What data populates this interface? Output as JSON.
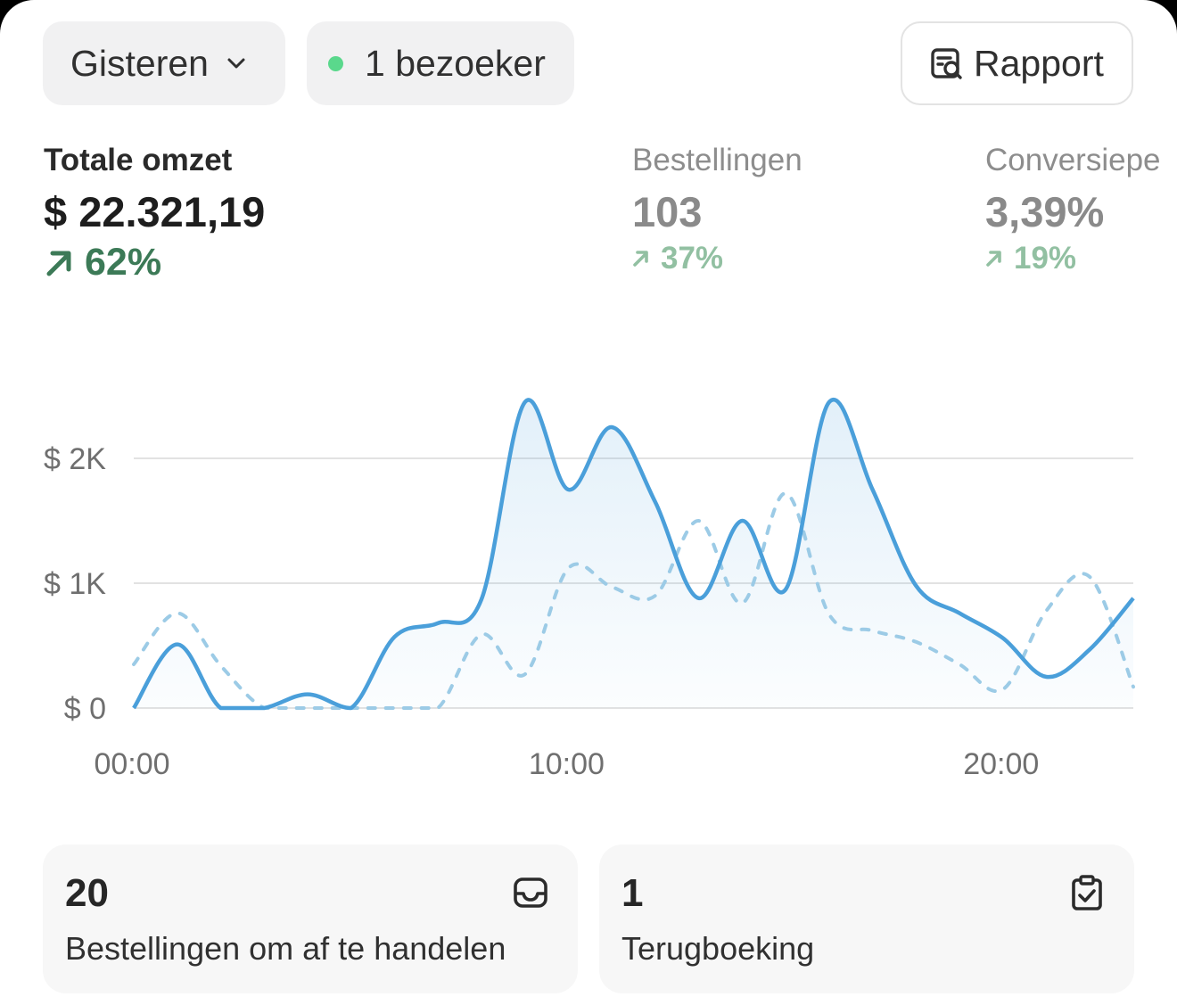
{
  "filters": {
    "date_label": "Gisteren",
    "visitors_label": "1 bezoeker",
    "report_label": "Rapport"
  },
  "metrics": [
    {
      "label": "Totale omzet",
      "value": "$ 22.321,19",
      "delta": "62%"
    },
    {
      "label": "Bestellingen",
      "value": "103",
      "delta": "37%"
    },
    {
      "label": "Conversiepe",
      "value": "3,39%",
      "delta": "19%"
    }
  ],
  "chart_data": {
    "type": "line",
    "y_ticks": [
      "$ 0",
      "$ 1K",
      "$ 2K"
    ],
    "x_ticks": [
      "00:00",
      "10:00",
      "20:00"
    ],
    "ylim": [
      0,
      2000
    ],
    "xlim": [
      0,
      23
    ],
    "grid": true,
    "series": [
      {
        "style": "solid",
        "x": [
          0,
          1,
          2,
          3,
          4,
          5,
          6,
          7,
          8,
          9,
          10,
          11,
          12,
          13,
          14,
          15,
          16,
          17,
          18,
          19,
          20,
          21,
          22,
          23
        ],
        "values": [
          0,
          510,
          0,
          0,
          110,
          0,
          570,
          680,
          870,
          2450,
          1750,
          2250,
          1650,
          880,
          1500,
          950,
          2450,
          1750,
          980,
          760,
          560,
          250,
          470,
          880
        ]
      },
      {
        "style": "dashed",
        "x": [
          0,
          1,
          2,
          3,
          4,
          5,
          6,
          7,
          8,
          9,
          10,
          11,
          12,
          13,
          14,
          15,
          16,
          17,
          18,
          19,
          20,
          21,
          22,
          23
        ],
        "values": [
          350,
          760,
          340,
          0,
          0,
          0,
          0,
          0,
          590,
          270,
          1120,
          970,
          900,
          1500,
          840,
          1720,
          750,
          620,
          530,
          350,
          150,
          780,
          1050,
          170
        ]
      }
    ]
  },
  "cards": [
    {
      "value": "20",
      "label": "Bestellingen om af te handelen",
      "icon": "inbox-icon"
    },
    {
      "value": "1",
      "label": "Terugboeking",
      "icon": "clipboard-check-icon"
    }
  ],
  "colors": {
    "line": "#4a9fda",
    "dashed": "#9ccbe6",
    "positive": "#3c7a57",
    "positive_muted": "#92c0a2",
    "status_dot": "#5ad88c"
  }
}
